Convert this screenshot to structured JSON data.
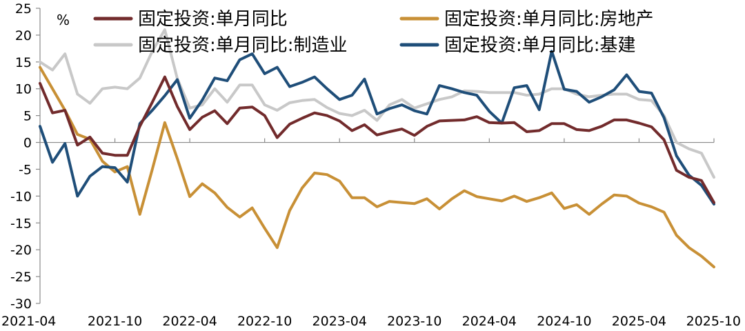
{
  "chart_data": {
    "type": "line",
    "unit_label": "%",
    "title": "",
    "xlabel": "",
    "ylabel": "",
    "ylim": [
      -30,
      25
    ],
    "yticks": [
      25,
      20,
      15,
      10,
      5,
      0,
      -5,
      -10,
      -15,
      -20,
      -25,
      -30
    ],
    "x_tick_labels": [
      "2021-04",
      "2021-10",
      "2022-04",
      "2022-10",
      "2023-04",
      "2023-10",
      "2024-04",
      "2024-10",
      "2025-04",
      "2025-10"
    ],
    "x": [
      "2021-04",
      "2021-05",
      "2021-06",
      "2021-07",
      "2021-08",
      "2021-09",
      "2021-10",
      "2021-11",
      "2021-12",
      "2022-01",
      "2022-02",
      "2022-03",
      "2022-04",
      "2022-05",
      "2022-06",
      "2022-07",
      "2022-08",
      "2022-09",
      "2022-10",
      "2022-11",
      "2022-12",
      "2023-01",
      "2023-02",
      "2023-03",
      "2023-04",
      "2023-05",
      "2023-06",
      "2023-07",
      "2023-08",
      "2023-09",
      "2023-10",
      "2023-11",
      "2023-12",
      "2024-01",
      "2024-02",
      "2024-03",
      "2024-04",
      "2024-05",
      "2024-06",
      "2024-07",
      "2024-08",
      "2024-09",
      "2024-10",
      "2024-11",
      "2024-12",
      "2025-01",
      "2025-02",
      "2025-03",
      "2025-04",
      "2025-05",
      "2025-06",
      "2025-07",
      "2025-08",
      "2025-09",
      "2025-10"
    ],
    "grid": false,
    "legend_position": "top",
    "series": [
      {
        "name": "固定投资:单月同比",
        "color": "#722B2C",
        "values": [
          11.0,
          5.5,
          6.0,
          -0.5,
          1.0,
          -2.0,
          -2.4,
          -2.4,
          3.0,
          7.5,
          12.2,
          6.7,
          2.4,
          4.7,
          5.9,
          3.5,
          6.4,
          6.6,
          5.0,
          0.9,
          3.4,
          4.5,
          5.5,
          5.0,
          4.0,
          2.2,
          3.3,
          1.4,
          2.0,
          2.5,
          1.3,
          3.0,
          4.0,
          4.1,
          4.2,
          4.8,
          3.7,
          3.6,
          3.7,
          2.0,
          2.2,
          3.5,
          3.5,
          2.4,
          2.2,
          3.0,
          4.2,
          4.2,
          3.6,
          2.9,
          0.5,
          -5.2,
          -6.5,
          -7.1,
          -11.2
        ]
      },
      {
        "name": "固定投资:单月同比:房地产",
        "color": "#C89036",
        "values": [
          14.0,
          10.0,
          6.0,
          1.5,
          0.6,
          -3.5,
          -5.5,
          -4.5,
          -13.4,
          -5.0,
          3.7,
          -3.0,
          -10.1,
          -7.7,
          -9.4,
          -12.1,
          -13.9,
          -12.2,
          -16.0,
          -19.6,
          -12.7,
          -8.5,
          -5.7,
          -6.0,
          -7.2,
          -10.3,
          -10.3,
          -12.0,
          -11.0,
          -11.2,
          -11.4,
          -10.5,
          -12.4,
          -10.5,
          -9.0,
          -10.1,
          -10.5,
          -10.9,
          -10.0,
          -11.0,
          -10.3,
          -9.4,
          -12.3,
          -11.6,
          -13.4,
          -11.5,
          -9.8,
          -10.0,
          -11.3,
          -12.0,
          -13.0,
          -17.3,
          -19.6,
          -21.2,
          -23.2
        ]
      },
      {
        "name": "固定投资:单月同比:制造业",
        "color": "#C8C8C8",
        "values": [
          15.0,
          13.5,
          16.5,
          9.0,
          7.3,
          10.0,
          10.3,
          10.0,
          12.0,
          17.0,
          21.0,
          11.9,
          6.4,
          7.0,
          10.0,
          7.5,
          10.7,
          10.7,
          7.0,
          6.0,
          7.4,
          7.8,
          8.0,
          6.5,
          5.4,
          5.0,
          6.0,
          4.1,
          7.0,
          8.0,
          6.4,
          7.2,
          8.0,
          8.5,
          9.6,
          9.5,
          9.3,
          9.3,
          9.3,
          8.8,
          9.0,
          10.0,
          10.0,
          9.0,
          8.5,
          8.8,
          9.0,
          9.0,
          8.0,
          7.8,
          5.0,
          0.0,
          -1.2,
          -2.0,
          -6.5
        ]
      },
      {
        "name": "固定投资:单月同比:基建",
        "color": "#1F4E79",
        "values": [
          3.0,
          -3.7,
          -0.2,
          -10.0,
          -6.3,
          -4.5,
          -4.7,
          -7.4,
          3.5,
          6.0,
          8.7,
          11.7,
          4.5,
          7.9,
          12.0,
          11.5,
          15.4,
          16.5,
          12.8,
          14.0,
          10.4,
          11.2,
          12.2,
          10.0,
          8.0,
          8.8,
          11.8,
          5.3,
          6.3,
          7.0,
          5.9,
          5.3,
          10.6,
          10.0,
          9.3,
          8.8,
          5.8,
          3.6,
          10.2,
          10.6,
          6.1,
          17.0,
          9.9,
          9.5,
          7.5,
          8.5,
          9.8,
          12.6,
          9.5,
          9.2,
          4.6,
          -2.5,
          -6.1,
          -8.0,
          -11.5
        ]
      }
    ]
  }
}
